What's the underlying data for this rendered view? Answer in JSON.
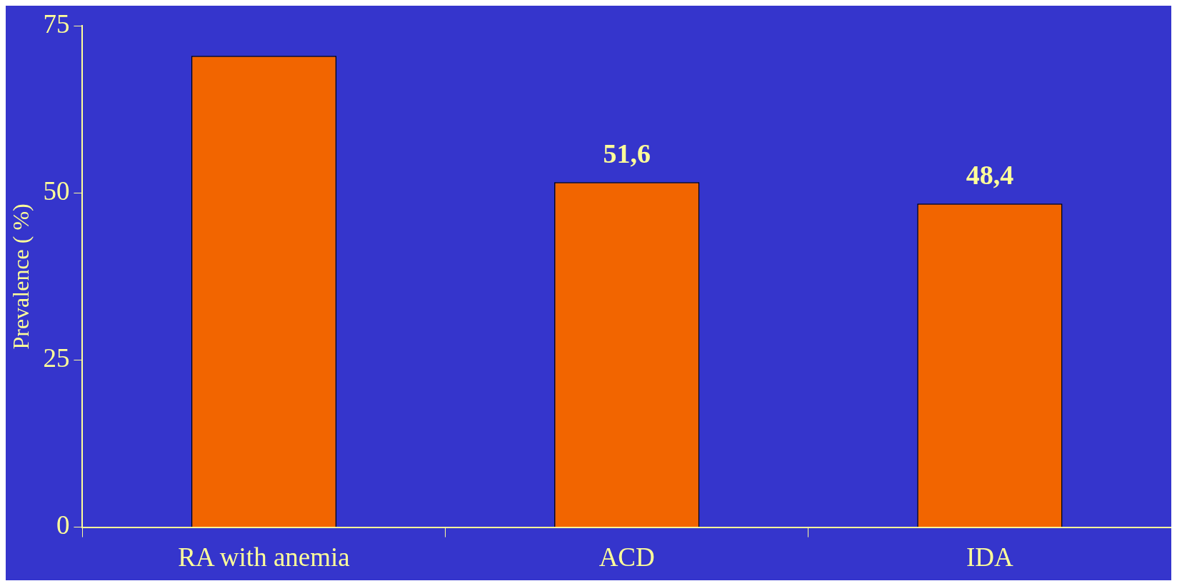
{
  "chart_data": {
    "type": "bar",
    "ylabel": "Prevalence ( %)",
    "categories": [
      "RA with anemia",
      "ACD",
      "IDA"
    ],
    "values": [
      70.5,
      51.6,
      48.4
    ],
    "value_labels": [
      null,
      "51,6",
      "48,4"
    ],
    "color": "#f26500",
    "ylim": [
      0,
      75
    ],
    "yticks": [
      0,
      25,
      50,
      75
    ],
    "grid": false,
    "legend": false
  }
}
